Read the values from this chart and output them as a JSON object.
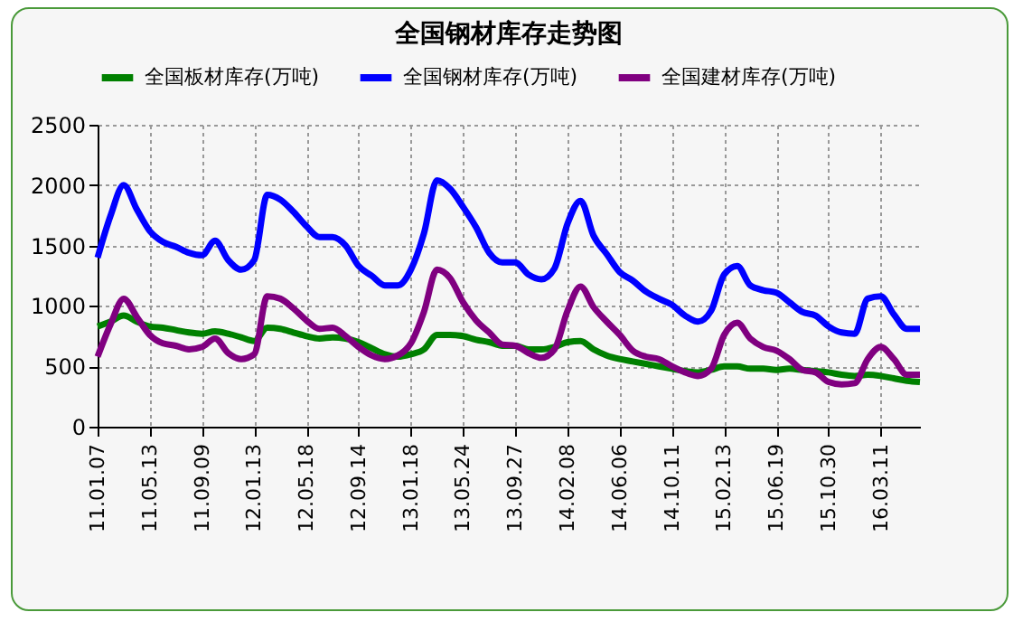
{
  "chart_data": {
    "type": "line",
    "title": "全国钢材库存走势图",
    "categories": [
      "11.01.07",
      null,
      null,
      null,
      "11.05.13",
      null,
      null,
      null,
      "11.09.09",
      null,
      null,
      null,
      "12.01.13",
      null,
      null,
      null,
      "12.05.18",
      null,
      null,
      null,
      "12.09.14",
      null,
      null,
      null,
      "13.01.18",
      null,
      null,
      null,
      "13.05.24",
      null,
      null,
      null,
      "13.09.27",
      null,
      null,
      null,
      "14.02.08",
      null,
      null,
      null,
      "14.06.06",
      null,
      null,
      null,
      "14.10.11",
      null,
      null,
      null,
      "15.02.13",
      null,
      null,
      null,
      "15.06.19",
      null,
      null,
      null,
      "15.10.30",
      null,
      null,
      null,
      "16.03.11",
      null,
      null,
      null
    ],
    "series": [
      {
        "name": "全国板材库存(万吨)",
        "color": "#008000",
        "values": [
          830,
          870,
          920,
          870,
          830,
          820,
          800,
          780,
          770,
          790,
          770,
          740,
          710,
          820,
          810,
          780,
          750,
          730,
          740,
          730,
          700,
          650,
          600,
          580,
          600,
          640,
          760,
          760,
          750,
          720,
          700,
          670,
          670,
          640,
          640,
          660,
          700,
          710,
          640,
          590,
          560,
          540,
          520,
          500,
          480,
          460,
          450,
          470,
          500,
          500,
          480,
          480,
          470,
          480,
          470,
          460,
          450,
          430,
          420,
          430,
          420,
          400,
          380,
          370
        ]
      },
      {
        "name": "全国钢材库存(万吨)",
        "color": "#0000ff",
        "values": [
          1400,
          1750,
          2000,
          1800,
          1620,
          1530,
          1490,
          1440,
          1420,
          1540,
          1380,
          1300,
          1380,
          1920,
          1880,
          1780,
          1660,
          1570,
          1570,
          1500,
          1330,
          1250,
          1170,
          1170,
          1300,
          1600,
          2040,
          1970,
          1820,
          1650,
          1440,
          1360,
          1360,
          1260,
          1220,
          1310,
          1680,
          1870,
          1580,
          1430,
          1280,
          1210,
          1120,
          1060,
          1010,
          920,
          870,
          960,
          1260,
          1330,
          1170,
          1130,
          1110,
          1030,
          950,
          920,
          830,
          780,
          770,
          1060,
          1080,
          930,
          810,
          810
        ]
      },
      {
        "name": "全国建材库存(万吨)",
        "color": "#800080",
        "values": [
          580,
          850,
          1060,
          910,
          760,
          690,
          670,
          640,
          660,
          730,
          610,
          560,
          600,
          1080,
          1060,
          980,
          880,
          810,
          820,
          750,
          660,
          590,
          560,
          590,
          690,
          950,
          1300,
          1230,
          1030,
          880,
          780,
          680,
          670,
          610,
          570,
          640,
          960,
          1160,
          990,
          870,
          760,
          630,
          580,
          560,
          500,
          450,
          420,
          480,
          760,
          860,
          730,
          660,
          630,
          560,
          470,
          450,
          370,
          350,
          360,
          560,
          660,
          560,
          430,
          430
        ]
      }
    ],
    "ylim": [
      0,
      2500
    ],
    "yticks": [
      0,
      500,
      1000,
      1500,
      2000,
      2500
    ],
    "grid": true,
    "legend": "top",
    "marker": "none",
    "line_style": "solid"
  }
}
